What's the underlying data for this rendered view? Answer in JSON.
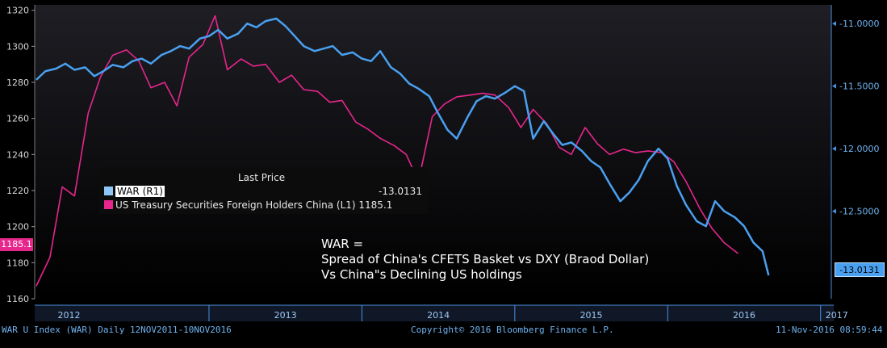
{
  "chart_data": {
    "type": "line",
    "legend": {
      "header": "Last Price",
      "placement": "upper-left",
      "entries": [
        {
          "name": "WAR  (R1)",
          "value": "-13.0131",
          "color": "#6fb3f0"
        },
        {
          "name": "US Treasury Securities Foreign Holders China  (L1)",
          "value": "1185.1",
          "color": "#e6268c"
        }
      ]
    },
    "annotation": [
      "WAR =",
      "Spread of China's CFETS Basket vs DXY (Braod Dollar)",
      "Vs China\"s Declining US holdings"
    ],
    "left_axis": {
      "ylim": [
        1160,
        1323
      ],
      "ticks": [
        "1320",
        "1300",
        "1280",
        "1260",
        "1240",
        "1220",
        "1200",
        "1180",
        "1160"
      ],
      "last_label": "1185.1"
    },
    "right_axis": {
      "ylim": [
        -13.2,
        -10.85
      ],
      "ticks": [
        "-11.0000",
        "-11.5000",
        "-12.0000",
        "-12.5000"
      ],
      "last_label": "-13.0131"
    },
    "x_axis": {
      "labels": [
        "2012",
        "2013",
        "2014",
        "2015",
        "2016",
        "2017"
      ],
      "xlim": [
        2011.86,
        2017.07
      ]
    },
    "grid": false,
    "series": [
      {
        "name": "US Treasury Securities Foreign Holders China  (L1)",
        "axis": "left",
        "color": "#e6268c",
        "x": [
          2011.87,
          2011.96,
          2012.04,
          2012.12,
          2012.21,
          2012.29,
          2012.37,
          2012.46,
          2012.54,
          2012.62,
          2012.71,
          2012.79,
          2012.87,
          2012.96,
          2013.04,
          2013.12,
          2013.21,
          2013.29,
          2013.37,
          2013.46,
          2013.54,
          2013.62,
          2013.71,
          2013.79,
          2013.87,
          2013.96,
          2014.04,
          2014.12,
          2014.21,
          2014.29,
          2014.37,
          2014.46,
          2014.54,
          2014.62,
          2014.71,
          2014.79,
          2014.87,
          2014.96,
          2015.04,
          2015.12,
          2015.21,
          2015.29,
          2015.37,
          2015.46,
          2015.54,
          2015.62,
          2015.71,
          2015.79,
          2015.87,
          2015.96,
          2016.04,
          2016.12,
          2016.21,
          2016.29,
          2016.37,
          2016.46
        ],
        "y": [
          1167,
          1183,
          1222,
          1217,
          1263,
          1283,
          1295,
          1298,
          1292,
          1277,
          1280,
          1267,
          1294,
          1301,
          1317,
          1287,
          1293,
          1289,
          1290,
          1280,
          1284,
          1276,
          1275,
          1269,
          1270,
          1258,
          1254,
          1249,
          1245,
          1240,
          1225,
          1261,
          1268,
          1272,
          1273,
          1274,
          1273,
          1266,
          1255,
          1265,
          1257,
          1244,
          1240,
          1255,
          1246,
          1240,
          1243,
          1241,
          1242,
          1241,
          1236,
          1225,
          1210,
          1199,
          1191,
          1185.1
        ]
      },
      {
        "name": "WAR  (R1)",
        "axis": "right",
        "color": "#4aa0f0",
        "x": [
          2011.87,
          2011.93,
          2012.0,
          2012.06,
          2012.12,
          2012.19,
          2012.25,
          2012.31,
          2012.37,
          2012.44,
          2012.5,
          2012.56,
          2012.62,
          2012.69,
          2012.75,
          2012.81,
          2012.87,
          2012.94,
          2013.0,
          2013.06,
          2013.12,
          2013.19,
          2013.25,
          2013.31,
          2013.37,
          2013.44,
          2013.5,
          2013.56,
          2013.62,
          2013.69,
          2013.75,
          2013.81,
          2013.87,
          2013.94,
          2014.0,
          2014.06,
          2014.12,
          2014.19,
          2014.25,
          2014.31,
          2014.37,
          2014.44,
          2014.5,
          2014.56,
          2014.62,
          2014.69,
          2014.75,
          2014.81,
          2014.87,
          2014.94,
          2015.0,
          2015.06,
          2015.12,
          2015.19,
          2015.25,
          2015.31,
          2015.37,
          2015.44,
          2015.5,
          2015.56,
          2015.62,
          2015.69,
          2015.75,
          2015.81,
          2015.87,
          2015.94,
          2016.0,
          2016.06,
          2016.12,
          2016.19,
          2016.25,
          2016.31,
          2016.37,
          2016.44,
          2016.5,
          2016.56,
          2016.62,
          2016.66
        ],
        "y": [
          -11.45,
          -11.38,
          -11.36,
          -11.32,
          -11.37,
          -11.35,
          -11.42,
          -11.38,
          -11.33,
          -11.35,
          -11.3,
          -11.28,
          -11.32,
          -11.25,
          -11.22,
          -11.18,
          -11.2,
          -11.12,
          -11.1,
          -11.05,
          -11.12,
          -11.08,
          -11.0,
          -11.03,
          -10.98,
          -10.96,
          -11.02,
          -11.1,
          -11.18,
          -11.22,
          -11.2,
          -11.18,
          -11.25,
          -11.23,
          -11.28,
          -11.3,
          -11.22,
          -11.35,
          -11.4,
          -11.48,
          -11.52,
          -11.58,
          -11.72,
          -11.85,
          -11.92,
          -11.75,
          -11.62,
          -11.58,
          -11.6,
          -11.55,
          -11.5,
          -11.54,
          -11.92,
          -11.78,
          -11.88,
          -11.97,
          -11.95,
          -12.02,
          -12.1,
          -12.15,
          -12.28,
          -12.42,
          -12.35,
          -12.25,
          -12.1,
          -12.0,
          -12.08,
          -12.3,
          -12.45,
          -12.58,
          -12.62,
          -12.42,
          -12.5,
          -12.55,
          -12.62,
          -12.75,
          -12.82,
          -13.0131
        ]
      }
    ]
  },
  "footer": {
    "left": "WAR U Index (WAR)  Daily 12NOV2011-10NOV2016",
    "center": "Copyright© 2016 Bloomberg Finance L.P.",
    "right": "11-Nov-2016 08:59:44"
  }
}
